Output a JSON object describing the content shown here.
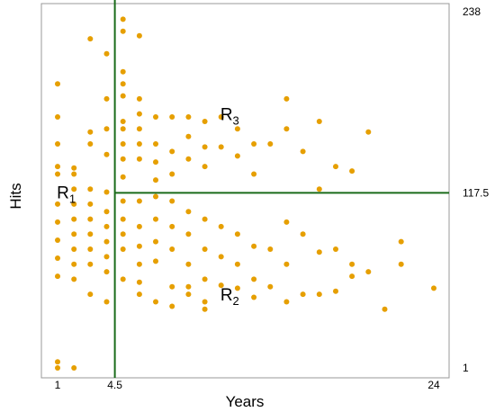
{
  "chart_data": {
    "type": "scatter",
    "title": "",
    "xlabel": "Years",
    "ylabel": "Hits",
    "xlim": [
      1,
      24
    ],
    "ylim": [
      1,
      238
    ],
    "x_ticks": [
      {
        "value": 1,
        "label": "1"
      },
      {
        "value": 4.5,
        "label": "4.5"
      },
      {
        "value": 24,
        "label": "24"
      }
    ],
    "y_ticks": [
      {
        "value": 1,
        "label": "1"
      },
      {
        "value": 117.5,
        "label": "117.5"
      },
      {
        "value": 238,
        "label": "238"
      }
    ],
    "splits": {
      "years": 4.5,
      "hits": 117.5
    },
    "regions": [
      {
        "name": "R",
        "sub": "1",
        "x": 1.5,
        "y": 118
      },
      {
        "name": "R",
        "sub": "2",
        "x": 11.5,
        "y": 50
      },
      {
        "name": "R",
        "sub": "3",
        "x": 11.5,
        "y": 170
      }
    ],
    "colors": {
      "points": "#E69F00",
      "split_lines": "#1a6b1a",
      "frame": "#999999"
    },
    "points": [
      [
        1,
        1
      ],
      [
        2,
        1
      ],
      [
        1,
        5
      ],
      [
        3,
        220
      ],
      [
        4,
        210
      ],
      [
        5,
        198
      ],
      [
        5,
        233
      ],
      [
        5,
        225
      ],
      [
        6,
        222
      ],
      [
        4,
        180
      ],
      [
        4,
        160
      ],
      [
        3,
        158
      ],
      [
        3,
        150
      ],
      [
        4,
        143
      ],
      [
        1,
        168
      ],
      [
        1,
        135
      ],
      [
        1,
        130
      ],
      [
        2,
        134
      ],
      [
        2,
        130
      ],
      [
        2,
        120
      ],
      [
        5,
        190
      ],
      [
        5,
        182
      ],
      [
        5,
        165
      ],
      [
        5,
        160
      ],
      [
        5,
        150
      ],
      [
        5,
        140
      ],
      [
        5,
        128
      ],
      [
        5,
        112
      ],
      [
        5,
        100
      ],
      [
        5,
        90
      ],
      [
        5,
        80
      ],
      [
        6,
        180
      ],
      [
        6,
        170
      ],
      [
        6,
        160
      ],
      [
        6,
        150
      ],
      [
        6,
        140
      ],
      [
        7,
        168
      ],
      [
        7,
        150
      ],
      [
        7,
        138
      ],
      [
        7,
        126
      ],
      [
        8,
        168
      ],
      [
        8,
        145
      ],
      [
        8,
        130
      ],
      [
        9,
        168
      ],
      [
        9,
        155
      ],
      [
        9,
        140
      ],
      [
        10,
        165
      ],
      [
        10,
        148
      ],
      [
        10,
        135
      ],
      [
        11,
        168
      ],
      [
        11,
        148
      ],
      [
        12,
        160
      ],
      [
        12,
        142
      ],
      [
        13,
        150
      ],
      [
        13,
        130
      ],
      [
        14,
        150
      ],
      [
        15,
        180
      ],
      [
        15,
        160
      ],
      [
        16,
        145
      ],
      [
        17,
        120
      ],
      [
        18,
        135
      ],
      [
        19,
        132
      ],
      [
        20,
        158
      ],
      [
        17,
        165
      ],
      [
        3,
        120
      ],
      [
        3,
        110
      ],
      [
        3,
        100
      ],
      [
        3,
        90
      ],
      [
        3,
        80
      ],
      [
        3,
        70
      ],
      [
        4,
        118
      ],
      [
        4,
        105
      ],
      [
        4,
        95
      ],
      [
        4,
        85
      ],
      [
        4,
        75
      ],
      [
        4,
        65
      ],
      [
        1,
        110
      ],
      [
        1,
        98
      ],
      [
        1,
        86
      ],
      [
        1,
        74
      ],
      [
        1,
        62
      ],
      [
        2,
        110
      ],
      [
        2,
        100
      ],
      [
        2,
        90
      ],
      [
        2,
        80
      ],
      [
        2,
        70
      ],
      [
        2,
        60
      ],
      [
        6,
        112
      ],
      [
        6,
        95
      ],
      [
        6,
        82
      ],
      [
        6,
        70
      ],
      [
        6,
        58
      ],
      [
        7,
        115
      ],
      [
        7,
        100
      ],
      [
        7,
        85
      ],
      [
        7,
        72
      ],
      [
        8,
        112
      ],
      [
        8,
        95
      ],
      [
        8,
        80
      ],
      [
        8,
        55
      ],
      [
        9,
        105
      ],
      [
        9,
        90
      ],
      [
        9,
        70
      ],
      [
        9,
        50
      ],
      [
        10,
        100
      ],
      [
        10,
        80
      ],
      [
        10,
        60
      ],
      [
        10,
        45
      ],
      [
        11,
        95
      ],
      [
        11,
        75
      ],
      [
        11,
        56
      ],
      [
        12,
        90
      ],
      [
        12,
        70
      ],
      [
        12,
        54
      ],
      [
        13,
        82
      ],
      [
        13,
        60
      ],
      [
        14,
        80
      ],
      [
        14,
        55
      ],
      [
        15,
        98
      ],
      [
        15,
        70
      ],
      [
        16,
        90
      ],
      [
        16,
        50
      ],
      [
        17,
        78
      ],
      [
        18,
        80
      ],
      [
        18,
        52
      ],
      [
        19,
        70
      ],
      [
        20,
        65
      ],
      [
        21,
        40
      ],
      [
        22,
        85
      ],
      [
        22,
        70
      ],
      [
        24,
        54
      ],
      [
        3,
        50
      ],
      [
        4,
        45
      ],
      [
        5,
        60
      ],
      [
        6,
        50
      ],
      [
        7,
        45
      ],
      [
        8,
        42
      ],
      [
        9,
        55
      ],
      [
        10,
        40
      ],
      [
        13,
        48
      ],
      [
        15,
        45
      ],
      [
        17,
        50
      ],
      [
        19,
        62
      ],
      [
        1,
        150
      ],
      [
        1,
        190
      ]
    ]
  }
}
